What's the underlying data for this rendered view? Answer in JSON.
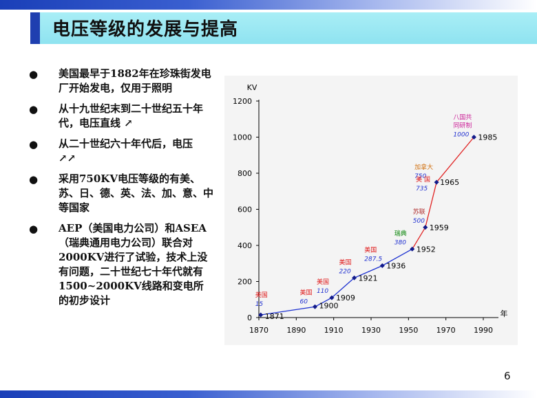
{
  "title": "电压等级的发展与提高",
  "bullets": [
    "美国最早于1882年在珍珠街发电厂开始发电，仅用于照明",
    "从十九世纪末到二十世纪五十年代，电压直线 ↗",
    "从二十世纪六十年代后，电压 ↗↗",
    "采用750KV电压等级的有美、苏、日、德、英、法、加、意、中等国家",
    "AEP（美国电力公司）和ASEA（瑞典通用电力公司）联合对2000KV进行了试验，技术上没有问题，二十世纪七十年代就有1500~2000KV线路和变电所的初步设计"
  ],
  "bullet_glyph": "●",
  "page_number": "6",
  "colors": {
    "top_bar": "#1a3fb8",
    "title_band": "#a9eef6",
    "blue_line": "#1a2fd0",
    "red_line": "#e02020",
    "point": "#111a8a",
    "country_label": "#e02020",
    "value_label": "#2030d0",
    "ba_guo_label": "#cc2299",
    "canada_label": "#d07010",
    "suli_label": "#b03030",
    "ruidian_label": "#108810"
  },
  "chart_data": {
    "type": "line",
    "ylabel": "KV",
    "xlabel": "年",
    "xlim": [
      1870,
      1990
    ],
    "ylim": [
      0,
      1200
    ],
    "x_ticks": [
      "1870",
      "1890",
      "1910",
      "1930",
      "1950",
      "1970",
      "1990"
    ],
    "y_ticks": [
      "0",
      "200",
      "400",
      "600",
      "800",
      "1000",
      "1200"
    ],
    "series": [
      {
        "color": "blue",
        "points": [
          {
            "x": 1871,
            "y": 15
          },
          {
            "x": 1900,
            "y": 60
          },
          {
            "x": 1909,
            "y": 110
          },
          {
            "x": 1921,
            "y": 220
          },
          {
            "x": 1936,
            "y": 287.5
          },
          {
            "x": 1952,
            "y": 380
          }
        ]
      },
      {
        "color": "red",
        "points": [
          {
            "x": 1952,
            "y": 380
          },
          {
            "x": 1959,
            "y": 500
          },
          {
            "x": 1965,
            "y": 750
          },
          {
            "x": 1985,
            "y": 1000
          }
        ]
      }
    ],
    "annotations": [
      {
        "x": 1871,
        "y": 15,
        "year": "1871",
        "country": "美国",
        "value": "15"
      },
      {
        "x": 1900,
        "y": 60,
        "year": "1900",
        "country": "美国",
        "value": "60"
      },
      {
        "x": 1909,
        "y": 110,
        "year": "1909",
        "country": "美国",
        "value": "110"
      },
      {
        "x": 1921,
        "y": 220,
        "year": "1921",
        "country": "美国",
        "value": "220"
      },
      {
        "x": 1936,
        "y": 287.5,
        "year": "1936",
        "country": "美国",
        "value": "287.5"
      },
      {
        "x": 1952,
        "y": 380,
        "year": "1952",
        "country": "瑞典",
        "value": "380"
      },
      {
        "x": 1959,
        "y": 500,
        "year": "1959",
        "country": "苏联",
        "value": "500"
      },
      {
        "x": 1965,
        "y": 750,
        "year": "1965",
        "country": "加拿大",
        "value": "750",
        "country2": "美 国",
        "value2": "735"
      },
      {
        "x": 1985,
        "y": 1000,
        "year": "1985",
        "country": "八国共同研制",
        "value": "1000"
      }
    ],
    "grid": false,
    "legend": "none"
  }
}
